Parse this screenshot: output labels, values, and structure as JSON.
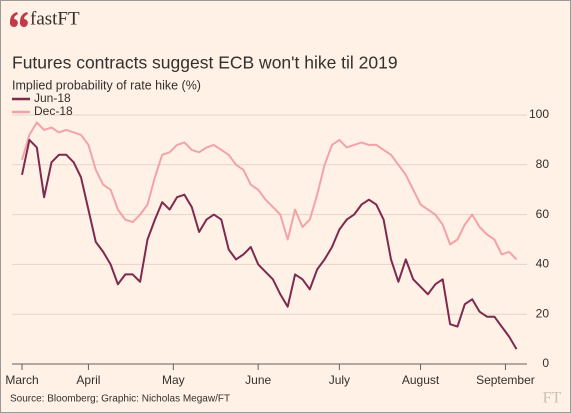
{
  "brand": "fastFT",
  "watermark": "FT",
  "chart_data": {
    "type": "line",
    "title": "Futures contracts suggest ECB won't hike til 2019",
    "y_label": "Implied probability of rate hike (%)",
    "source": "Source: Bloomberg; Graphic: Nicholas Megaw/FT",
    "x": [
      0,
      2,
      4,
      6,
      8,
      10,
      12,
      14,
      16,
      18,
      20,
      22,
      24,
      26,
      28,
      30,
      32,
      34,
      36,
      38,
      40,
      42,
      44,
      46,
      48,
      50,
      52,
      54,
      56,
      58,
      60,
      62,
      64,
      66,
      68,
      70,
      72,
      74,
      76,
      78,
      80,
      82,
      84,
      86,
      88,
      90,
      92,
      94,
      96,
      98,
      100,
      102,
      104,
      106,
      108,
      110,
      112,
      114,
      116,
      118,
      120,
      122,
      124,
      126,
      128,
      130,
      132,
      134
    ],
    "xlim": [
      0,
      134
    ],
    "xticks": [
      {
        "value": 0,
        "label": "March"
      },
      {
        "value": 18,
        "label": "April"
      },
      {
        "value": 41,
        "label": "May"
      },
      {
        "value": 64,
        "label": "June"
      },
      {
        "value": 86,
        "label": "July"
      },
      {
        "value": 108,
        "label": "August"
      },
      {
        "value": 131,
        "label": "September"
      }
    ],
    "ylim": [
      0,
      100
    ],
    "yticks": [
      0,
      20,
      40,
      60,
      80,
      100
    ],
    "grid": true,
    "legend": "top-left",
    "series": [
      {
        "name": "Jun-18",
        "color": "#7d2a4f",
        "values": [
          76,
          90,
          87,
          67,
          81,
          84,
          84,
          81,
          75,
          62,
          49,
          45,
          40,
          32,
          36,
          36,
          33,
          50,
          58,
          65,
          62,
          67,
          68,
          63,
          53,
          58,
          60,
          58,
          46,
          42,
          44,
          47,
          40,
          37,
          34,
          28,
          23,
          36,
          34,
          30,
          38,
          42,
          47,
          54,
          58,
          60,
          64,
          66,
          64,
          58,
          42,
          33,
          42,
          34,
          31,
          28,
          32,
          34,
          16,
          15,
          24,
          26,
          21,
          19,
          19,
          15,
          11,
          6
        ]
      },
      {
        "name": "Dec-18",
        "color": "#f2a3a8",
        "values": [
          82,
          92,
          97,
          94,
          95,
          93,
          94,
          93,
          92,
          88,
          78,
          72,
          70,
          62,
          58,
          57,
          60,
          64,
          75,
          84,
          85,
          88,
          89,
          86,
          85,
          87,
          88,
          86,
          84,
          80,
          78,
          72,
          70,
          66,
          63,
          60,
          50,
          62,
          55,
          58,
          68,
          80,
          88,
          90,
          87,
          88,
          89,
          88,
          88,
          86,
          84,
          80,
          76,
          70,
          64,
          62,
          60,
          56,
          48,
          50,
          56,
          60,
          55,
          52,
          50,
          44,
          45,
          42
        ]
      }
    ]
  }
}
